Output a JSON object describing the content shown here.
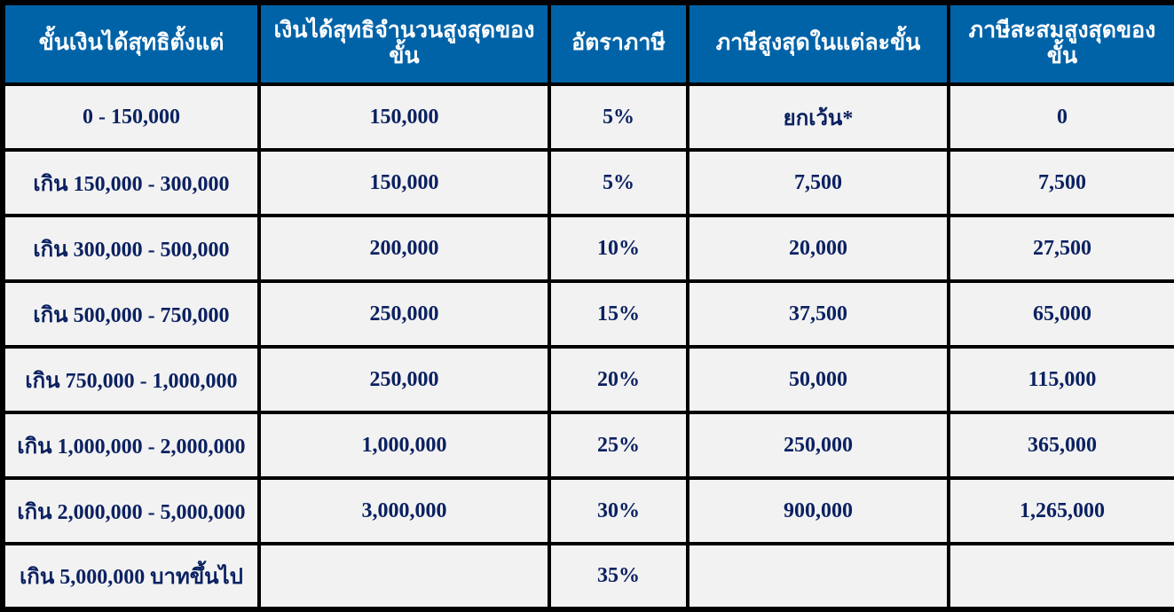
{
  "colors": {
    "header_bg": "#0063a8",
    "header_text": "#ffffff",
    "cell_bg": "#f2f2f2",
    "cell_text": "#0b2161",
    "border": "#000000"
  },
  "table": {
    "headers": [
      "ขั้นเงินได้สุทธิตั้งแต่",
      "เงินได้สุทธิจำนวนสูงสุดของขั้น",
      "อัตราภาษี",
      "ภาษีสูงสุดในแต่ละขั้น",
      "ภาษีสะสมสูงสุดของขั้น"
    ],
    "rows": [
      [
        "0 - 150,000",
        "150,000",
        "5%",
        "ยกเว้น*",
        "0"
      ],
      [
        "เกิน 150,000 - 300,000",
        "150,000",
        "5%",
        "7,500",
        "7,500"
      ],
      [
        "เกิน 300,000 - 500,000",
        "200,000",
        "10%",
        "20,000",
        "27,500"
      ],
      [
        "เกิน 500,000 - 750,000",
        "250,000",
        "15%",
        "37,500",
        "65,000"
      ],
      [
        "เกิน 750,000 - 1,000,000",
        "250,000",
        "20%",
        "50,000",
        "115,000"
      ],
      [
        "เกิน 1,000,000 - 2,000,000",
        "1,000,000",
        "25%",
        "250,000",
        "365,000"
      ],
      [
        "เกิน 2,000,000 - 5,000,000",
        "3,000,000",
        "30%",
        "900,000",
        "1,265,000"
      ],
      [
        "เกิน 5,000,000 บาทขึ้นไป",
        "",
        "35%",
        "",
        ""
      ]
    ]
  },
  "chart_data": {
    "type": "table",
    "title": "Thai personal income tax brackets",
    "columns": [
      "ขั้นเงินได้สุทธิตั้งแต่",
      "เงินได้สุทธิจำนวนสูงสุดของขั้น",
      "อัตราภาษี",
      "ภาษีสูงสุดในแต่ละขั้น",
      "ภาษีสะสมสูงสุดของขั้น"
    ],
    "rows": [
      [
        "0 - 150,000",
        "150,000",
        "5%",
        "ยกเว้น*",
        "0"
      ],
      [
        "เกิน 150,000 - 300,000",
        "150,000",
        "5%",
        "7,500",
        "7,500"
      ],
      [
        "เกิน 300,000 - 500,000",
        "200,000",
        "10%",
        "20,000",
        "27,500"
      ],
      [
        "เกิน 500,000 - 750,000",
        "250,000",
        "15%",
        "37,500",
        "65,000"
      ],
      [
        "เกิน 750,000 - 1,000,000",
        "250,000",
        "20%",
        "50,000",
        "115,000"
      ],
      [
        "เกิน 1,000,000 - 2,000,000",
        "1,000,000",
        "25%",
        "250,000",
        "365,000"
      ],
      [
        "เกิน 2,000,000 - 5,000,000",
        "3,000,000",
        "30%",
        "900,000",
        "1,265,000"
      ],
      [
        "เกิน 5,000,000 บาทขึ้นไป",
        "",
        "35%",
        "",
        ""
      ]
    ],
    "tax_rates_percent": [
      5,
      5,
      10,
      15,
      20,
      25,
      30,
      35
    ],
    "max_tax_per_bracket": [
      0,
      7500,
      20000,
      37500,
      50000,
      250000,
      900000,
      null
    ],
    "cumulative_max_tax": [
      0,
      7500,
      27500,
      65000,
      115000,
      365000,
      1265000,
      null
    ]
  }
}
